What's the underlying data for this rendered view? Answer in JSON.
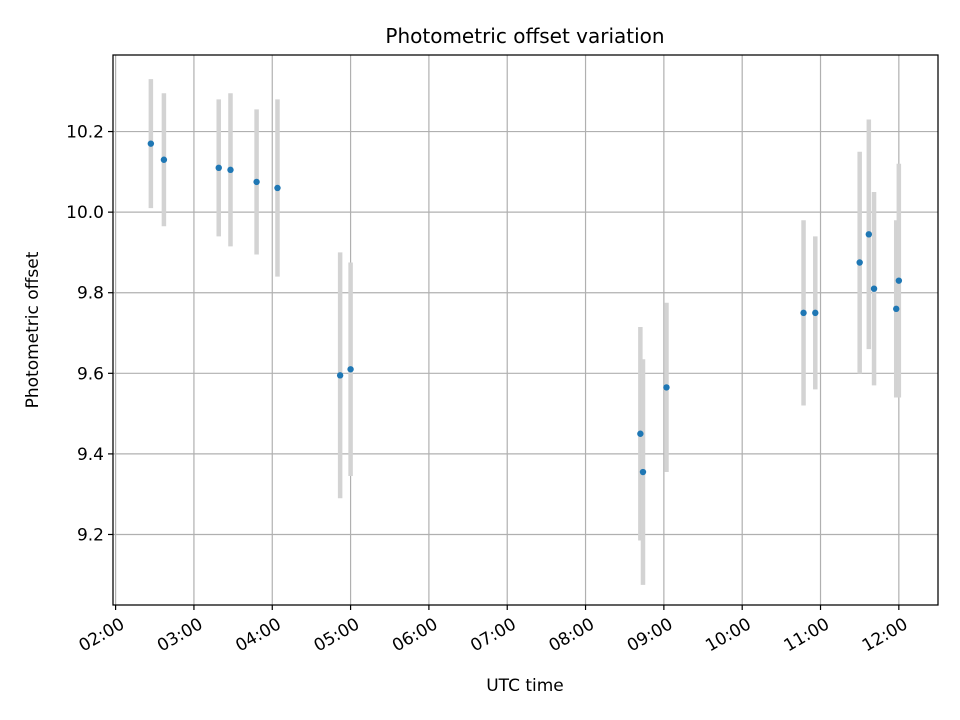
{
  "chart_data": {
    "type": "scatter",
    "title": "Photometric offset variation",
    "xlabel": "UTC time",
    "ylabel": "Photometric offset",
    "xlim": [
      "01:58",
      "12:30"
    ],
    "ylim": [
      9.025,
      10.39
    ],
    "x_ticks": [
      "02:00",
      "03:00",
      "04:00",
      "05:00",
      "06:00",
      "07:00",
      "08:00",
      "09:00",
      "10:00",
      "11:00",
      "12:00"
    ],
    "y_ticks": [
      9.2,
      9.4,
      9.6,
      9.8,
      10.0,
      10.2
    ],
    "grid": true,
    "point_color": "#1f77b4",
    "errorbar_color": "#d3d3d3",
    "points": [
      {
        "x": "02:27",
        "y": 10.17,
        "err": 0.16
      },
      {
        "x": "02:37",
        "y": 10.13,
        "err": 0.165
      },
      {
        "x": "03:19",
        "y": 10.11,
        "err": 0.17
      },
      {
        "x": "03:28",
        "y": 10.105,
        "err": 0.19
      },
      {
        "x": "03:48",
        "y": 10.075,
        "err": 0.18
      },
      {
        "x": "04:04",
        "y": 10.06,
        "err": 0.22
      },
      {
        "x": "04:52",
        "y": 9.595,
        "err": 0.305
      },
      {
        "x": "05:00",
        "y": 9.61,
        "err": 0.265
      },
      {
        "x": "08:42",
        "y": 9.45,
        "err": 0.265
      },
      {
        "x": "08:44",
        "y": 9.355,
        "err": 0.28
      },
      {
        "x": "09:02",
        "y": 9.565,
        "err": 0.21
      },
      {
        "x": "10:47",
        "y": 9.75,
        "err": 0.23
      },
      {
        "x": "10:56",
        "y": 9.75,
        "err": 0.19
      },
      {
        "x": "11:30",
        "y": 9.875,
        "err": 0.275
      },
      {
        "x": "11:37",
        "y": 9.945,
        "err": 0.285
      },
      {
        "x": "11:41",
        "y": 9.81,
        "err": 0.24
      },
      {
        "x": "11:58",
        "y": 9.76,
        "err": 0.22
      },
      {
        "x": "12:00",
        "y": 9.83,
        "err": 0.29
      }
    ]
  }
}
